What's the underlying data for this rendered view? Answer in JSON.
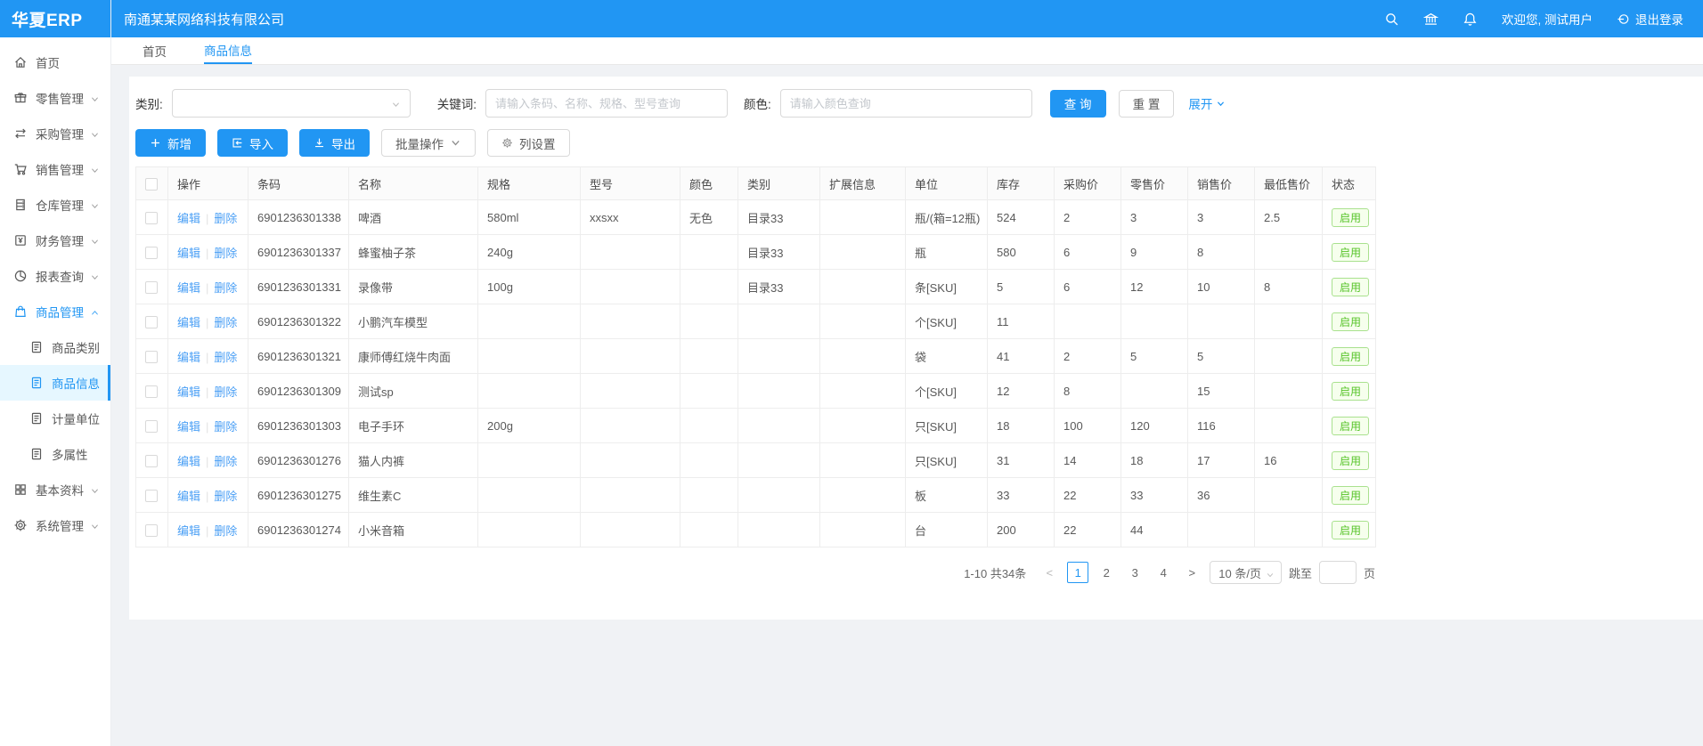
{
  "app": {
    "logo": "华夏ERP",
    "company": "南通某某网络科技有限公司"
  },
  "header": {
    "welcome": "欢迎您, 测试用户",
    "logout_label": "退出登录",
    "icons": [
      "search-icon",
      "bank-icon",
      "bell-icon",
      "logout-icon"
    ],
    "accent_color": "#2196f3"
  },
  "tabs": [
    {
      "label": "首页",
      "active": false
    },
    {
      "label": "商品信息",
      "active": true
    }
  ],
  "sidebar": {
    "items": [
      {
        "id": "home",
        "label": "首页",
        "icon": "home-icon",
        "caret": ""
      },
      {
        "id": "retail",
        "label": "零售管理",
        "icon": "gift-icon",
        "caret": "down"
      },
      {
        "id": "purchase",
        "label": "采购管理",
        "icon": "swap-icon",
        "caret": "down"
      },
      {
        "id": "sales",
        "label": "销售管理",
        "icon": "cart-icon",
        "caret": "down"
      },
      {
        "id": "warehouse",
        "label": "仓库管理",
        "icon": "cabinet-icon",
        "caret": "down"
      },
      {
        "id": "finance",
        "label": "财务管理",
        "icon": "money-icon",
        "caret": "down"
      },
      {
        "id": "report",
        "label": "报表查询",
        "icon": "pie-icon",
        "caret": "down"
      },
      {
        "id": "product",
        "label": "商品管理",
        "icon": "bag-icon",
        "caret": "up",
        "active": true,
        "children": [
          {
            "id": "product-category",
            "label": "商品类别",
            "icon": "doc-icon",
            "active": false
          },
          {
            "id": "product-info",
            "label": "商品信息",
            "icon": "doc-icon",
            "active": true
          },
          {
            "id": "measure-unit",
            "label": "计量单位",
            "icon": "doc-icon",
            "active": false
          },
          {
            "id": "multi-attr",
            "label": "多属性",
            "icon": "doc-icon",
            "active": false
          }
        ]
      },
      {
        "id": "basic",
        "label": "基本资料",
        "icon": "grid-icon",
        "caret": "down"
      },
      {
        "id": "system",
        "label": "系统管理",
        "icon": "gear-icon",
        "caret": "down"
      }
    ]
  },
  "filters": {
    "category_label": "类别:",
    "keyword_label": "关键词:",
    "keyword_placeholder": "请输入条码、名称、规格、型号查询",
    "color_label": "颜色:",
    "color_placeholder": "请输入颜色查询",
    "search_button": "查 询",
    "reset_button": "重 置",
    "expand_link": "展开"
  },
  "toolbar": {
    "add_label": "新增",
    "import_label": "导入",
    "export_label": "导出",
    "batch_label": "批量操作",
    "columns_label": "列设置"
  },
  "table": {
    "headers": [
      "操作",
      "条码",
      "名称",
      "规格",
      "型号",
      "颜色",
      "类别",
      "扩展信息",
      "单位",
      "库存",
      "采购价",
      "零售价",
      "销售价",
      "最低售价",
      "状态"
    ],
    "edit_label": "编辑",
    "delete_label": "删除",
    "status_enabled": "启用",
    "status_color": "#55c327",
    "rows": [
      {
        "barcode": "6901236301338",
        "name": "啤酒",
        "spec": "580ml",
        "model": "xxsxx",
        "color": "无色",
        "category": "目录33",
        "ext": "",
        "unit": "瓶/(箱=12瓶)",
        "stock": "524",
        "purchase": "2",
        "retail": "3",
        "sale": "3",
        "min": "2.5",
        "status": "启用"
      },
      {
        "barcode": "6901236301337",
        "name": "蜂蜜柚子茶",
        "spec": "240g",
        "model": "",
        "color": "",
        "category": "目录33",
        "ext": "",
        "unit": "瓶",
        "stock": "580",
        "purchase": "6",
        "retail": "9",
        "sale": "8",
        "min": "",
        "status": "启用"
      },
      {
        "barcode": "6901236301331",
        "name": "录像带",
        "spec": "100g",
        "model": "",
        "color": "",
        "category": "目录33",
        "ext": "",
        "unit": "条[SKU]",
        "stock": "5",
        "purchase": "6",
        "retail": "12",
        "sale": "10",
        "min": "8",
        "status": "启用"
      },
      {
        "barcode": "6901236301322",
        "name": "小鹏汽车模型",
        "spec": "",
        "model": "",
        "color": "",
        "category": "",
        "ext": "",
        "unit": "个[SKU]",
        "stock": "11",
        "purchase": "",
        "retail": "",
        "sale": "",
        "min": "",
        "status": "启用"
      },
      {
        "barcode": "6901236301321",
        "name": "康师傅红烧牛肉面",
        "spec": "",
        "model": "",
        "color": "",
        "category": "",
        "ext": "",
        "unit": "袋",
        "stock": "41",
        "purchase": "2",
        "retail": "5",
        "sale": "5",
        "min": "",
        "status": "启用"
      },
      {
        "barcode": "6901236301309",
        "name": "测试sp",
        "spec": "",
        "model": "",
        "color": "",
        "category": "",
        "ext": "",
        "unit": "个[SKU]",
        "stock": "12",
        "purchase": "8",
        "retail": "",
        "sale": "15",
        "min": "",
        "status": "启用"
      },
      {
        "barcode": "6901236301303",
        "name": "电子手环",
        "spec": "200g",
        "model": "",
        "color": "",
        "category": "",
        "ext": "",
        "unit": "只[SKU]",
        "stock": "18",
        "purchase": "100",
        "retail": "120",
        "sale": "116",
        "min": "",
        "status": "启用"
      },
      {
        "barcode": "6901236301276",
        "name": "猫人内裤",
        "spec": "",
        "model": "",
        "color": "",
        "category": "",
        "ext": "",
        "unit": "只[SKU]",
        "stock": "31",
        "purchase": "14",
        "retail": "18",
        "sale": "17",
        "min": "16",
        "status": "启用"
      },
      {
        "barcode": "6901236301275",
        "name": "维生素C",
        "spec": "",
        "model": "",
        "color": "",
        "category": "",
        "ext": "",
        "unit": "板",
        "stock": "33",
        "purchase": "22",
        "retail": "33",
        "sale": "36",
        "min": "",
        "status": "启用"
      },
      {
        "barcode": "6901236301274",
        "name": "小米音箱",
        "spec": "",
        "model": "",
        "color": "",
        "category": "",
        "ext": "",
        "unit": "台",
        "stock": "200",
        "purchase": "22",
        "retail": "44",
        "sale": "",
        "min": "",
        "status": "启用"
      }
    ]
  },
  "pagination": {
    "summary": "1-10 共34条",
    "prev": "<",
    "next": ">",
    "pages": [
      "1",
      "2",
      "3",
      "4"
    ],
    "active_page": "1",
    "page_size": "10 条/页",
    "jump_label": "跳至",
    "jump_value": "",
    "page_suffix": "页"
  }
}
